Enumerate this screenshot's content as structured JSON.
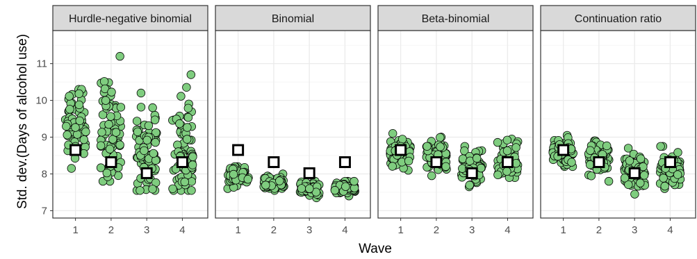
{
  "chart_data": {
    "type": "scatter",
    "xlabel": "Wave",
    "ylabel": "Std. dev.(Days of alcohol use)",
    "x_categories": [
      "1",
      "2",
      "3",
      "4"
    ],
    "ylim": [
      6.8,
      11.9
    ],
    "yticks": [
      7,
      8,
      9,
      10,
      11
    ],
    "grid": true,
    "observed_marker": "open-square",
    "simulated_marker": "green-circle",
    "colors": {
      "simulated_fill": "#7fcd7f",
      "point_stroke": "#000000",
      "panel_border": "#333333",
      "strip_fill": "#d9d9d9",
      "grid": "#ebebeb"
    },
    "observed": [
      {
        "wave": "1",
        "value": 8.65
      },
      {
        "wave": "2",
        "value": 8.32
      },
      {
        "wave": "3",
        "value": 8.02
      },
      {
        "wave": "4",
        "value": 8.32
      }
    ],
    "panels": [
      {
        "title": "Hurdle-negative binomial",
        "simulated": [
          {
            "wave": "1",
            "min": 8.15,
            "max": 10.3,
            "center": 9.3
          },
          {
            "wave": "2",
            "min": 7.8,
            "max": 11.2,
            "center": 9.1
          },
          {
            "wave": "3",
            "min": 7.55,
            "max": 10.2,
            "center": 8.7
          },
          {
            "wave": "4",
            "min": 7.55,
            "max": 10.7,
            "center": 8.8
          }
        ]
      },
      {
        "title": "Binomial",
        "simulated": [
          {
            "wave": "1",
            "min": 7.6,
            "max": 8.2,
            "center": 7.95
          },
          {
            "wave": "2",
            "min": 7.55,
            "max": 8.0,
            "center": 7.75
          },
          {
            "wave": "3",
            "min": 7.35,
            "max": 7.8,
            "center": 7.6
          },
          {
            "wave": "4",
            "min": 7.4,
            "max": 7.8,
            "center": 7.6
          }
        ]
      },
      {
        "title": "Beta-binomial",
        "simulated": [
          {
            "wave": "1",
            "min": 8.1,
            "max": 9.1,
            "center": 8.55
          },
          {
            "wave": "2",
            "min": 7.95,
            "max": 9.0,
            "center": 8.5
          },
          {
            "wave": "3",
            "min": 7.65,
            "max": 8.75,
            "center": 8.2
          },
          {
            "wave": "4",
            "min": 7.9,
            "max": 8.95,
            "center": 8.4
          }
        ]
      },
      {
        "title": "Continuation ratio",
        "simulated": [
          {
            "wave": "1",
            "min": 8.2,
            "max": 9.05,
            "center": 8.6
          },
          {
            "wave": "2",
            "min": 7.8,
            "max": 8.9,
            "center": 8.4
          },
          {
            "wave": "3",
            "min": 7.45,
            "max": 8.7,
            "center": 8.1
          },
          {
            "wave": "4",
            "min": 7.6,
            "max": 8.75,
            "center": 8.15
          }
        ]
      }
    ]
  }
}
